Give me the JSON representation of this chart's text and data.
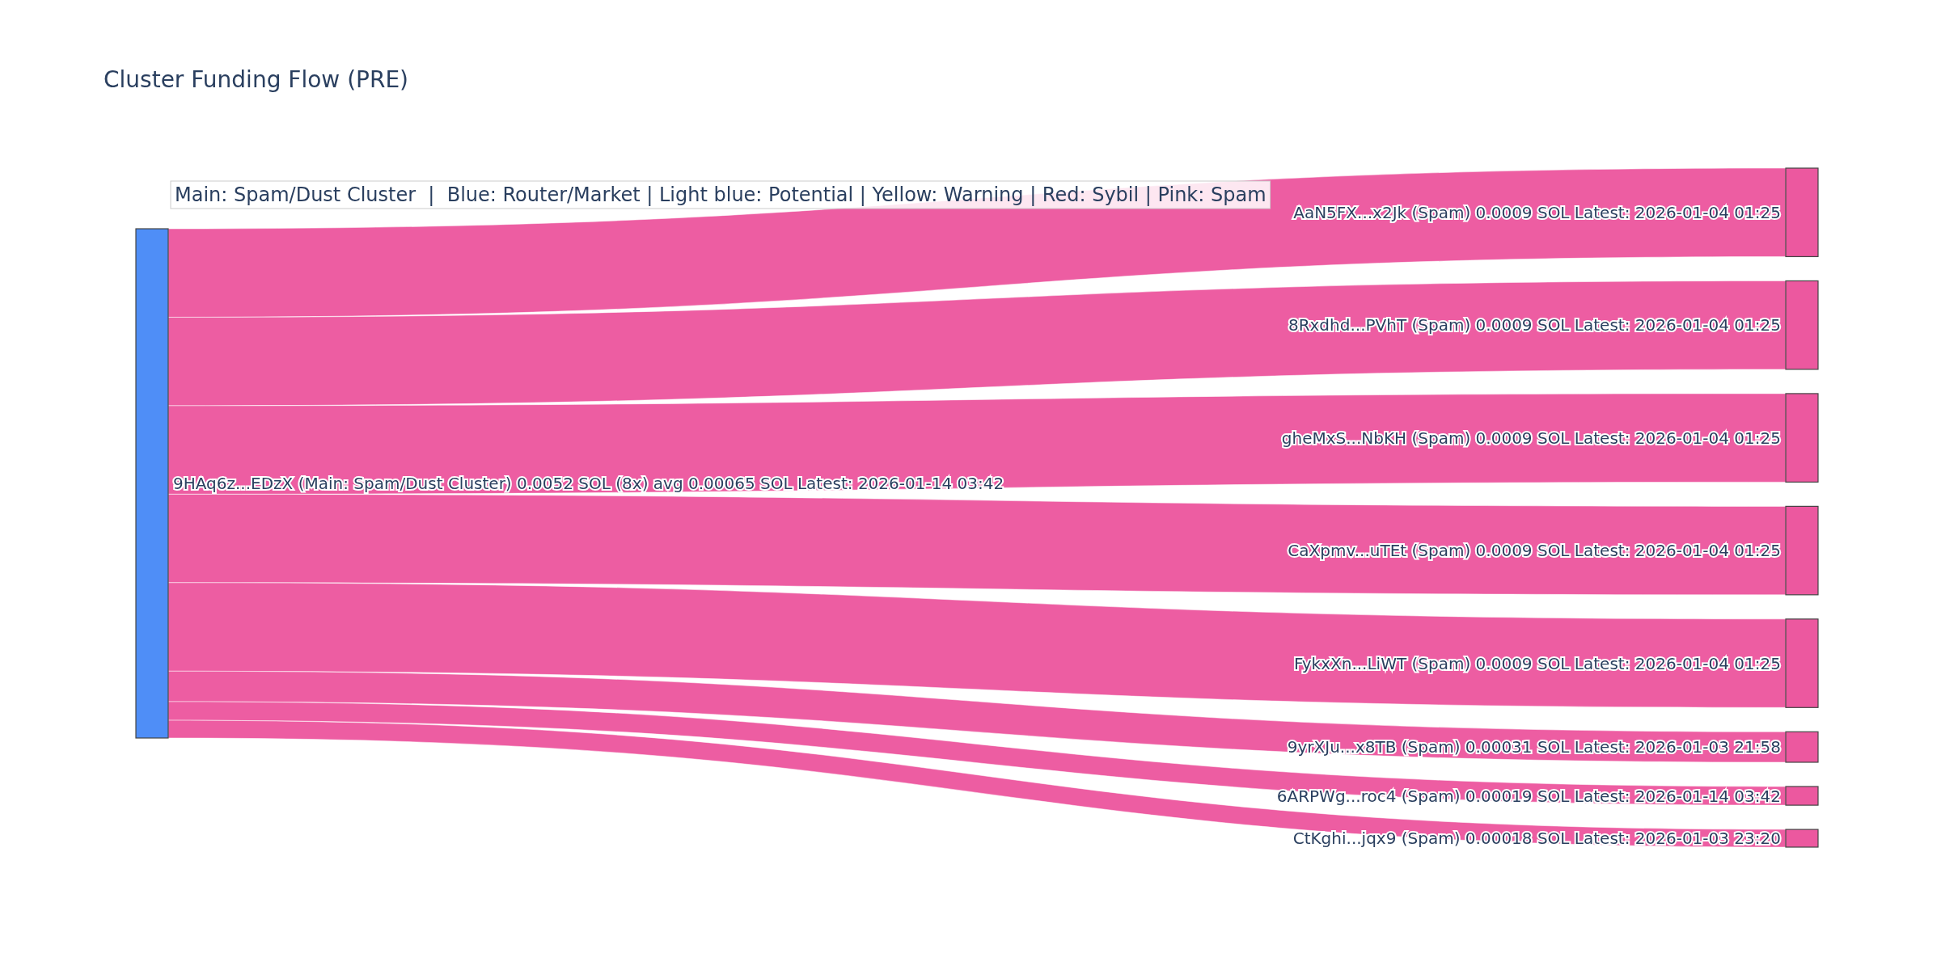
{
  "chart_data": {
    "type": "other",
    "title": "Cluster Funding Flow (PRE)",
    "annotations": [
      "Main: Spam/Dust Cluster  |  Blue: Router/Market | Light blue: Potential | Yellow: Warning | Red: Sybil | Pink: Spam"
    ],
    "categories": [
      "AaN5FX...x2Jk (Spam)",
      "8Rxdhd...PVhT (Spam)",
      "gheMxS...NbKH (Spam)",
      "CaXpmv...uTEt (Spam)",
      "FykxXn...LiWT (Spam)",
      "9yrXJu...x8TB (Spam)",
      "6ARPWg...roc4 (Spam)",
      "CtKghi...jqx9 (Spam)"
    ],
    "colors": [
      "#ec589f",
      "#ec589f",
      "#ec589f",
      "#ec589f",
      "#ec589f",
      "#ec589f",
      "#ec589f",
      "#ec589f"
    ],
    "series": [
      {
        "name": "9HAq6z...EDzX (Main: Spam/Dust Cluster) 0.0052 SOL (8x) avg 0.00065 SOL Latest: 2026-01-14 03:42",
        "color": "#ec589f",
        "values": [
          0.0009,
          0.0009,
          0.0009,
          0.0009,
          0.0009,
          0.00031,
          0.00019,
          0.00018
        ],
        "value_labels": [
          "0.0009 SOL Latest: 2026-01-04 01:25",
          "0.0009 SOL Latest: 2026-01-04 01:25",
          "0.0009 SOL Latest: 2026-01-04 01:25",
          "0.0009 SOL Latest: 2026-01-04 01:25",
          "0.0009 SOL Latest: 2026-01-04 01:25",
          "0.00031 SOL Latest: 2026-01-03 21:58",
          "0.00019 SOL Latest: 2026-01-14 03:42",
          "0.00018 SOL Latest: 2026-01-03 23:20"
        ]
      }
    ]
  }
}
